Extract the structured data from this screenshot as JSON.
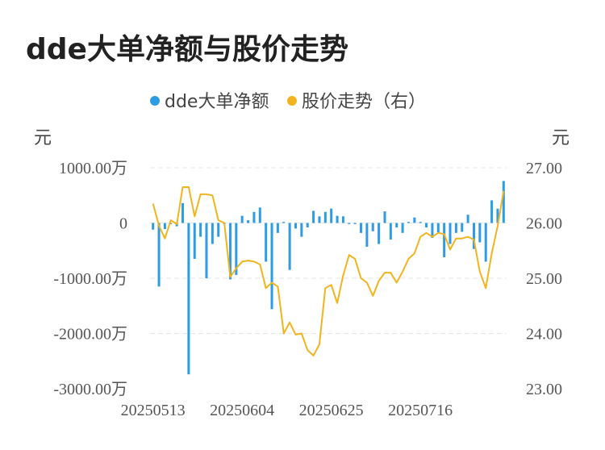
{
  "title": "dde大单净额与股价走势",
  "chart_data": {
    "type": "bar+line",
    "title": "dde大单净额与股价走势",
    "legend": [
      {
        "name": "dde大单净额",
        "color": "#2e9be5"
      },
      {
        "name": "股价走势（右）",
        "color": "#f1b41c"
      }
    ],
    "left_unit": "元",
    "right_unit": "元",
    "left_axis": {
      "min": -3000,
      "max": 1000,
      "ticks": [
        1000,
        0,
        -1000,
        -2000,
        -3000
      ],
      "tick_labels": [
        "1000.00万",
        "0",
        "-1000.00万",
        "-2000.00万",
        "-3000.00万"
      ]
    },
    "right_axis": {
      "min": 23,
      "max": 27,
      "ticks": [
        27,
        26,
        25,
        24,
        23
      ],
      "tick_labels": [
        "27.00",
        "26.00",
        "25.00",
        "24.00",
        "23.00"
      ]
    },
    "x_tick_labels": [
      {
        "index": 0,
        "label": "20250513"
      },
      {
        "index": 15,
        "label": "20250604"
      },
      {
        "index": 30,
        "label": "20250625"
      },
      {
        "index": 45,
        "label": "20250716"
      }
    ],
    "series": [
      {
        "name": "dde大单净额",
        "unit": "万元",
        "axis": "left",
        "values": [
          -120,
          -1150,
          -110,
          -20,
          -60,
          360,
          -2740,
          -650,
          -250,
          -1000,
          -380,
          -250,
          -20,
          -1020,
          -940,
          130,
          50,
          200,
          280,
          -700,
          -1560,
          -180,
          20,
          -850,
          -100,
          -250,
          -80,
          220,
          120,
          200,
          260,
          130,
          120,
          -20,
          -20,
          -180,
          -430,
          -150,
          -380,
          210,
          -300,
          -80,
          -180,
          20,
          100,
          20,
          -80,
          -270,
          -170,
          -620,
          -380,
          -180,
          -160,
          150,
          -470,
          -350,
          -700,
          410,
          260,
          760
        ]
      },
      {
        "name": "股价走势（右）",
        "unit": "元",
        "axis": "right",
        "values": [
          26.35,
          25.95,
          25.72,
          26.05,
          25.98,
          26.65,
          26.65,
          26.12,
          26.52,
          26.52,
          26.5,
          26.05,
          26.0,
          25.02,
          25.18,
          25.3,
          25.32,
          25.3,
          25.25,
          24.82,
          24.92,
          24.85,
          24.0,
          24.2,
          23.98,
          24.0,
          23.7,
          23.6,
          23.8,
          24.82,
          24.88,
          24.55,
          25.05,
          25.42,
          25.35,
          25.0,
          24.92,
          24.68,
          24.95,
          25.1,
          25.1,
          24.92,
          25.12,
          25.35,
          25.45,
          25.75,
          25.82,
          25.75,
          25.82,
          25.8,
          25.52,
          25.72,
          25.72,
          25.75,
          25.7,
          25.12,
          24.82,
          25.45,
          25.95,
          26.58
        ]
      }
    ]
  }
}
